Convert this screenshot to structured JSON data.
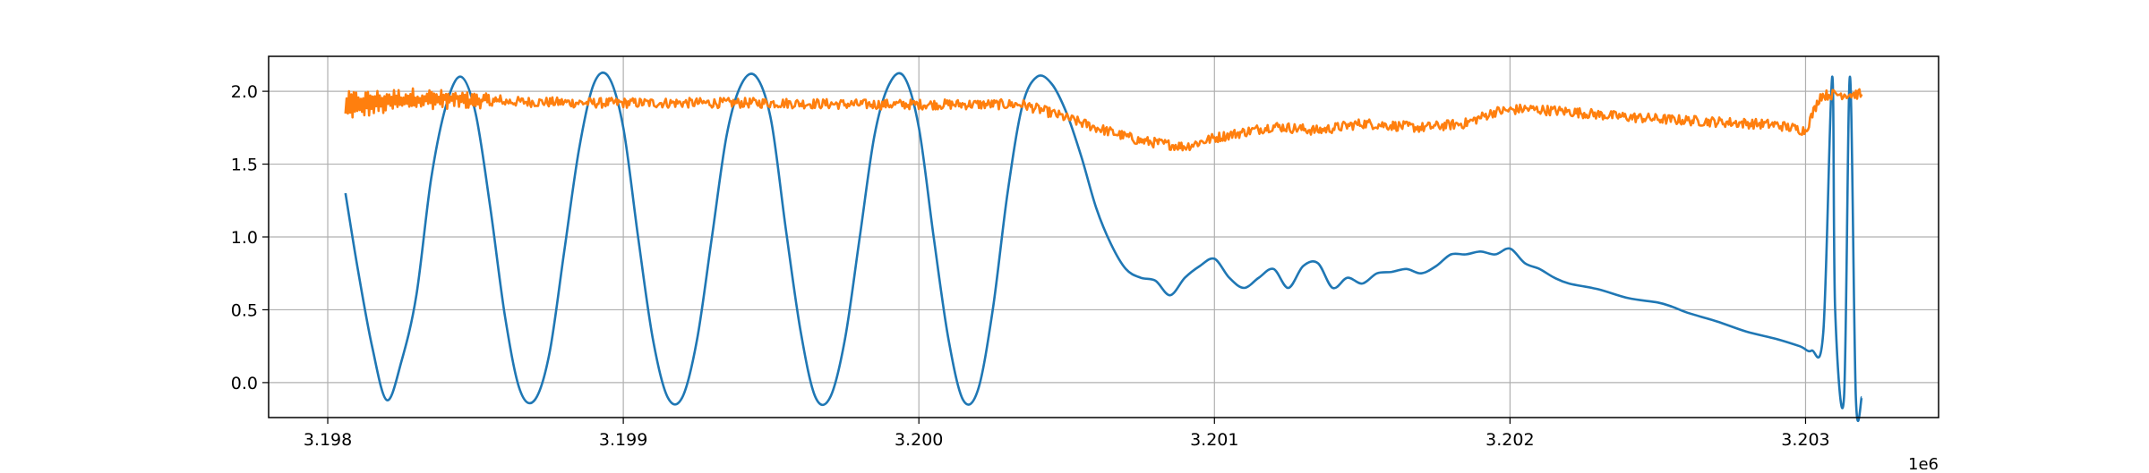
{
  "chart_data": {
    "type": "line",
    "title": "",
    "xlabel": "",
    "ylabel": "",
    "x_offset_label": "1e6",
    "xlim": [
      3197.8,
      3203.45
    ],
    "ylim": [
      -0.24,
      2.24
    ],
    "x_ticks": [
      3198.0,
      3199.0,
      3200.0,
      3201.0,
      3202.0,
      3203.0
    ],
    "x_tick_labels": [
      "3.198",
      "3.199",
      "3.200",
      "3.201",
      "3.202",
      "3.203"
    ],
    "y_ticks": [
      0.0,
      0.5,
      1.0,
      1.5,
      2.0
    ],
    "y_tick_labels": [
      "0.0",
      "0.5",
      "1.0",
      "1.5",
      "2.0"
    ],
    "grid": true,
    "legend": "none",
    "series": [
      {
        "color": "#1f77b4",
        "x": [
          3198.06,
          3198.1,
          3198.15,
          3198.2,
          3198.25,
          3198.3,
          3198.35,
          3198.4,
          3198.45,
          3198.5,
          3198.55,
          3198.6,
          3198.65,
          3198.7,
          3198.75,
          3198.8,
          3198.85,
          3198.9,
          3198.95,
          3199.0,
          3199.05,
          3199.1,
          3199.15,
          3199.2,
          3199.25,
          3199.3,
          3199.35,
          3199.4,
          3199.45,
          3199.5,
          3199.55,
          3199.6,
          3199.65,
          3199.7,
          3199.75,
          3199.8,
          3199.85,
          3199.9,
          3199.95,
          3200.0,
          3200.05,
          3200.1,
          3200.15,
          3200.2,
          3200.25,
          3200.3,
          3200.35,
          3200.4,
          3200.45,
          3200.5,
          3200.55,
          3200.6,
          3200.65,
          3200.7,
          3200.75,
          3200.8,
          3200.85,
          3200.9,
          3200.95,
          3201.0,
          3201.05,
          3201.1,
          3201.15,
          3201.2,
          3201.25,
          3201.3,
          3201.35,
          3201.4,
          3201.45,
          3201.5,
          3201.55,
          3201.6,
          3201.65,
          3201.7,
          3201.75,
          3201.8,
          3201.85,
          3201.9,
          3201.95,
          3202.0,
          3202.05,
          3202.1,
          3202.15,
          3202.2,
          3202.3,
          3202.4,
          3202.5,
          3202.55,
          3202.6,
          3202.7,
          3202.8,
          3202.9,
          3202.98,
          3203.02,
          3203.06,
          3203.09,
          3203.1,
          3203.13,
          3203.15,
          3203.17,
          3203.19
        ],
        "y": [
          1.3,
          0.8,
          0.25,
          -0.12,
          0.15,
          0.6,
          1.4,
          1.9,
          2.1,
          1.85,
          1.2,
          0.45,
          -0.05,
          -0.12,
          0.2,
          0.9,
          1.6,
          2.05,
          2.1,
          1.75,
          1.0,
          0.3,
          -0.1,
          -0.1,
          0.3,
          1.0,
          1.7,
          2.05,
          2.1,
          1.8,
          1.05,
          0.35,
          -0.1,
          -0.1,
          0.3,
          1.0,
          1.7,
          2.05,
          2.1,
          1.75,
          1.0,
          0.3,
          -0.12,
          -0.05,
          0.5,
          1.3,
          1.9,
          2.1,
          2.05,
          1.85,
          1.55,
          1.2,
          0.95,
          0.78,
          0.72,
          0.7,
          0.6,
          0.72,
          0.8,
          0.85,
          0.72,
          0.65,
          0.72,
          0.78,
          0.65,
          0.8,
          0.82,
          0.65,
          0.72,
          0.68,
          0.75,
          0.76,
          0.78,
          0.75,
          0.8,
          0.88,
          0.88,
          0.9,
          0.88,
          0.92,
          0.82,
          0.78,
          0.72,
          0.68,
          0.64,
          0.58,
          0.55,
          0.52,
          0.48,
          0.42,
          0.35,
          0.3,
          0.25,
          0.22,
          0.35,
          2.1,
          0.5,
          -0.1,
          2.1,
          -0.1,
          -0.1
        ]
      },
      {
        "color": "#ff7f0e",
        "x": [
          3198.06,
          3198.3,
          3198.6,
          3198.9,
          3199.2,
          3199.5,
          3199.8,
          3200.1,
          3200.35,
          3200.45,
          3200.6,
          3200.75,
          3200.9,
          3201.0,
          3201.1,
          3201.2,
          3201.35,
          3201.5,
          3201.7,
          3201.85,
          3201.95,
          3202.05,
          3202.2,
          3202.35,
          3202.5,
          3202.7,
          3202.9,
          3203.0,
          3203.05,
          3203.1,
          3203.19
        ],
        "y": [
          1.9,
          1.95,
          1.93,
          1.92,
          1.92,
          1.92,
          1.91,
          1.91,
          1.91,
          1.85,
          1.75,
          1.66,
          1.62,
          1.68,
          1.72,
          1.76,
          1.73,
          1.78,
          1.75,
          1.78,
          1.86,
          1.88,
          1.86,
          1.83,
          1.81,
          1.79,
          1.77,
          1.73,
          1.97,
          1.98,
          1.98
        ],
        "noise_amplitude": 0.035,
        "early_oscillation_amplitude": 0.09
      }
    ]
  }
}
